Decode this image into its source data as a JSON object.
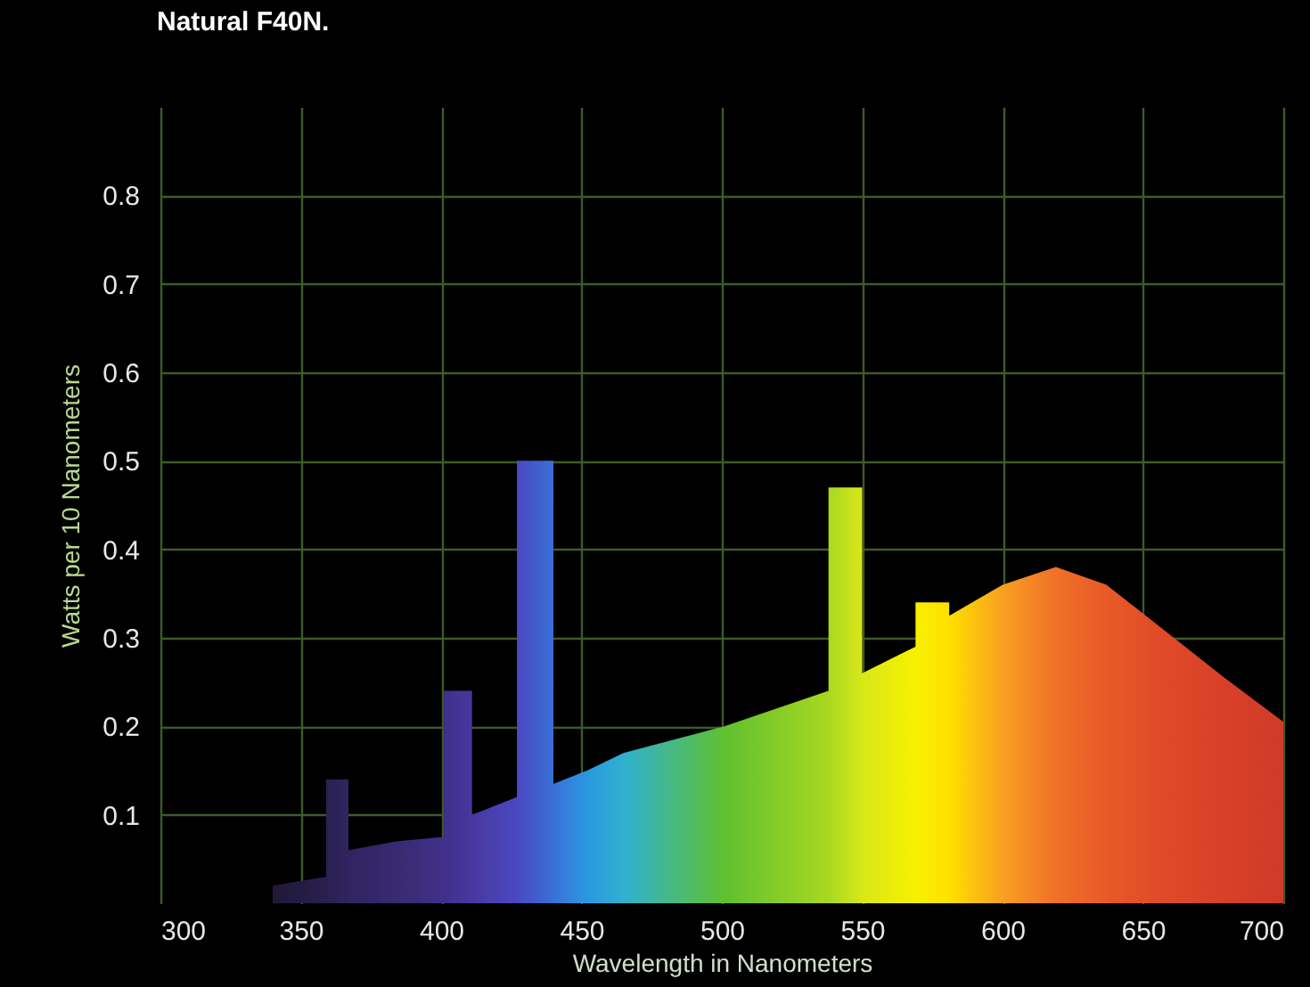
{
  "chart_data": {
    "type": "area",
    "title": "Natural F40N.",
    "xlabel": "Wavelength in Nanometers",
    "ylabel": "Watts per 10 Nanometers",
    "x": [
      340,
      359,
      359,
      367,
      367,
      384,
      401,
      401,
      411,
      411,
      427,
      427,
      440,
      440,
      452,
      465,
      501,
      538,
      538,
      550,
      550,
      569,
      569,
      581,
      581,
      600,
      619,
      637,
      657,
      679,
      700
    ],
    "values": [
      0.02,
      0.03,
      0.14,
      0.14,
      0.06,
      0.07,
      0.075,
      0.24,
      0.24,
      0.1,
      0.12,
      0.5,
      0.5,
      0.135,
      0.15,
      0.17,
      0.2,
      0.24,
      0.47,
      0.47,
      0.26,
      0.29,
      0.34,
      0.34,
      0.325,
      0.36,
      0.38,
      0.36,
      0.31,
      0.255,
      0.205
    ],
    "colors": [
      "#201838",
      "#2a2050",
      "#2a2050",
      "#302460",
      "#302460",
      "#382a70",
      "#40308a",
      "#40308a",
      "#4838a0",
      "#4838a0",
      "#4a48c0",
      "#4a48c0",
      "#3a70d8",
      "#3a70d8",
      "#2a98e0",
      "#30b0d0",
      "#60c030",
      "#a8d820",
      "#a8d820",
      "#d8e818",
      "#d8e818",
      "#f8f000",
      "#f8f000",
      "#ffe000",
      "#ffe000",
      "#f8a020",
      "#f07028",
      "#e85a28",
      "#e04a28",
      "#d84028",
      "#d03a28"
    ],
    "xlim": [
      300,
      700
    ],
    "xticks": [
      300,
      350,
      400,
      450,
      500,
      550,
      600,
      650,
      700
    ],
    "ylim": [
      0,
      0.9
    ],
    "yticks": [
      0.1,
      0.2,
      0.3,
      0.4,
      0.5,
      0.6,
      0.7,
      0.8
    ],
    "grid": true
  }
}
